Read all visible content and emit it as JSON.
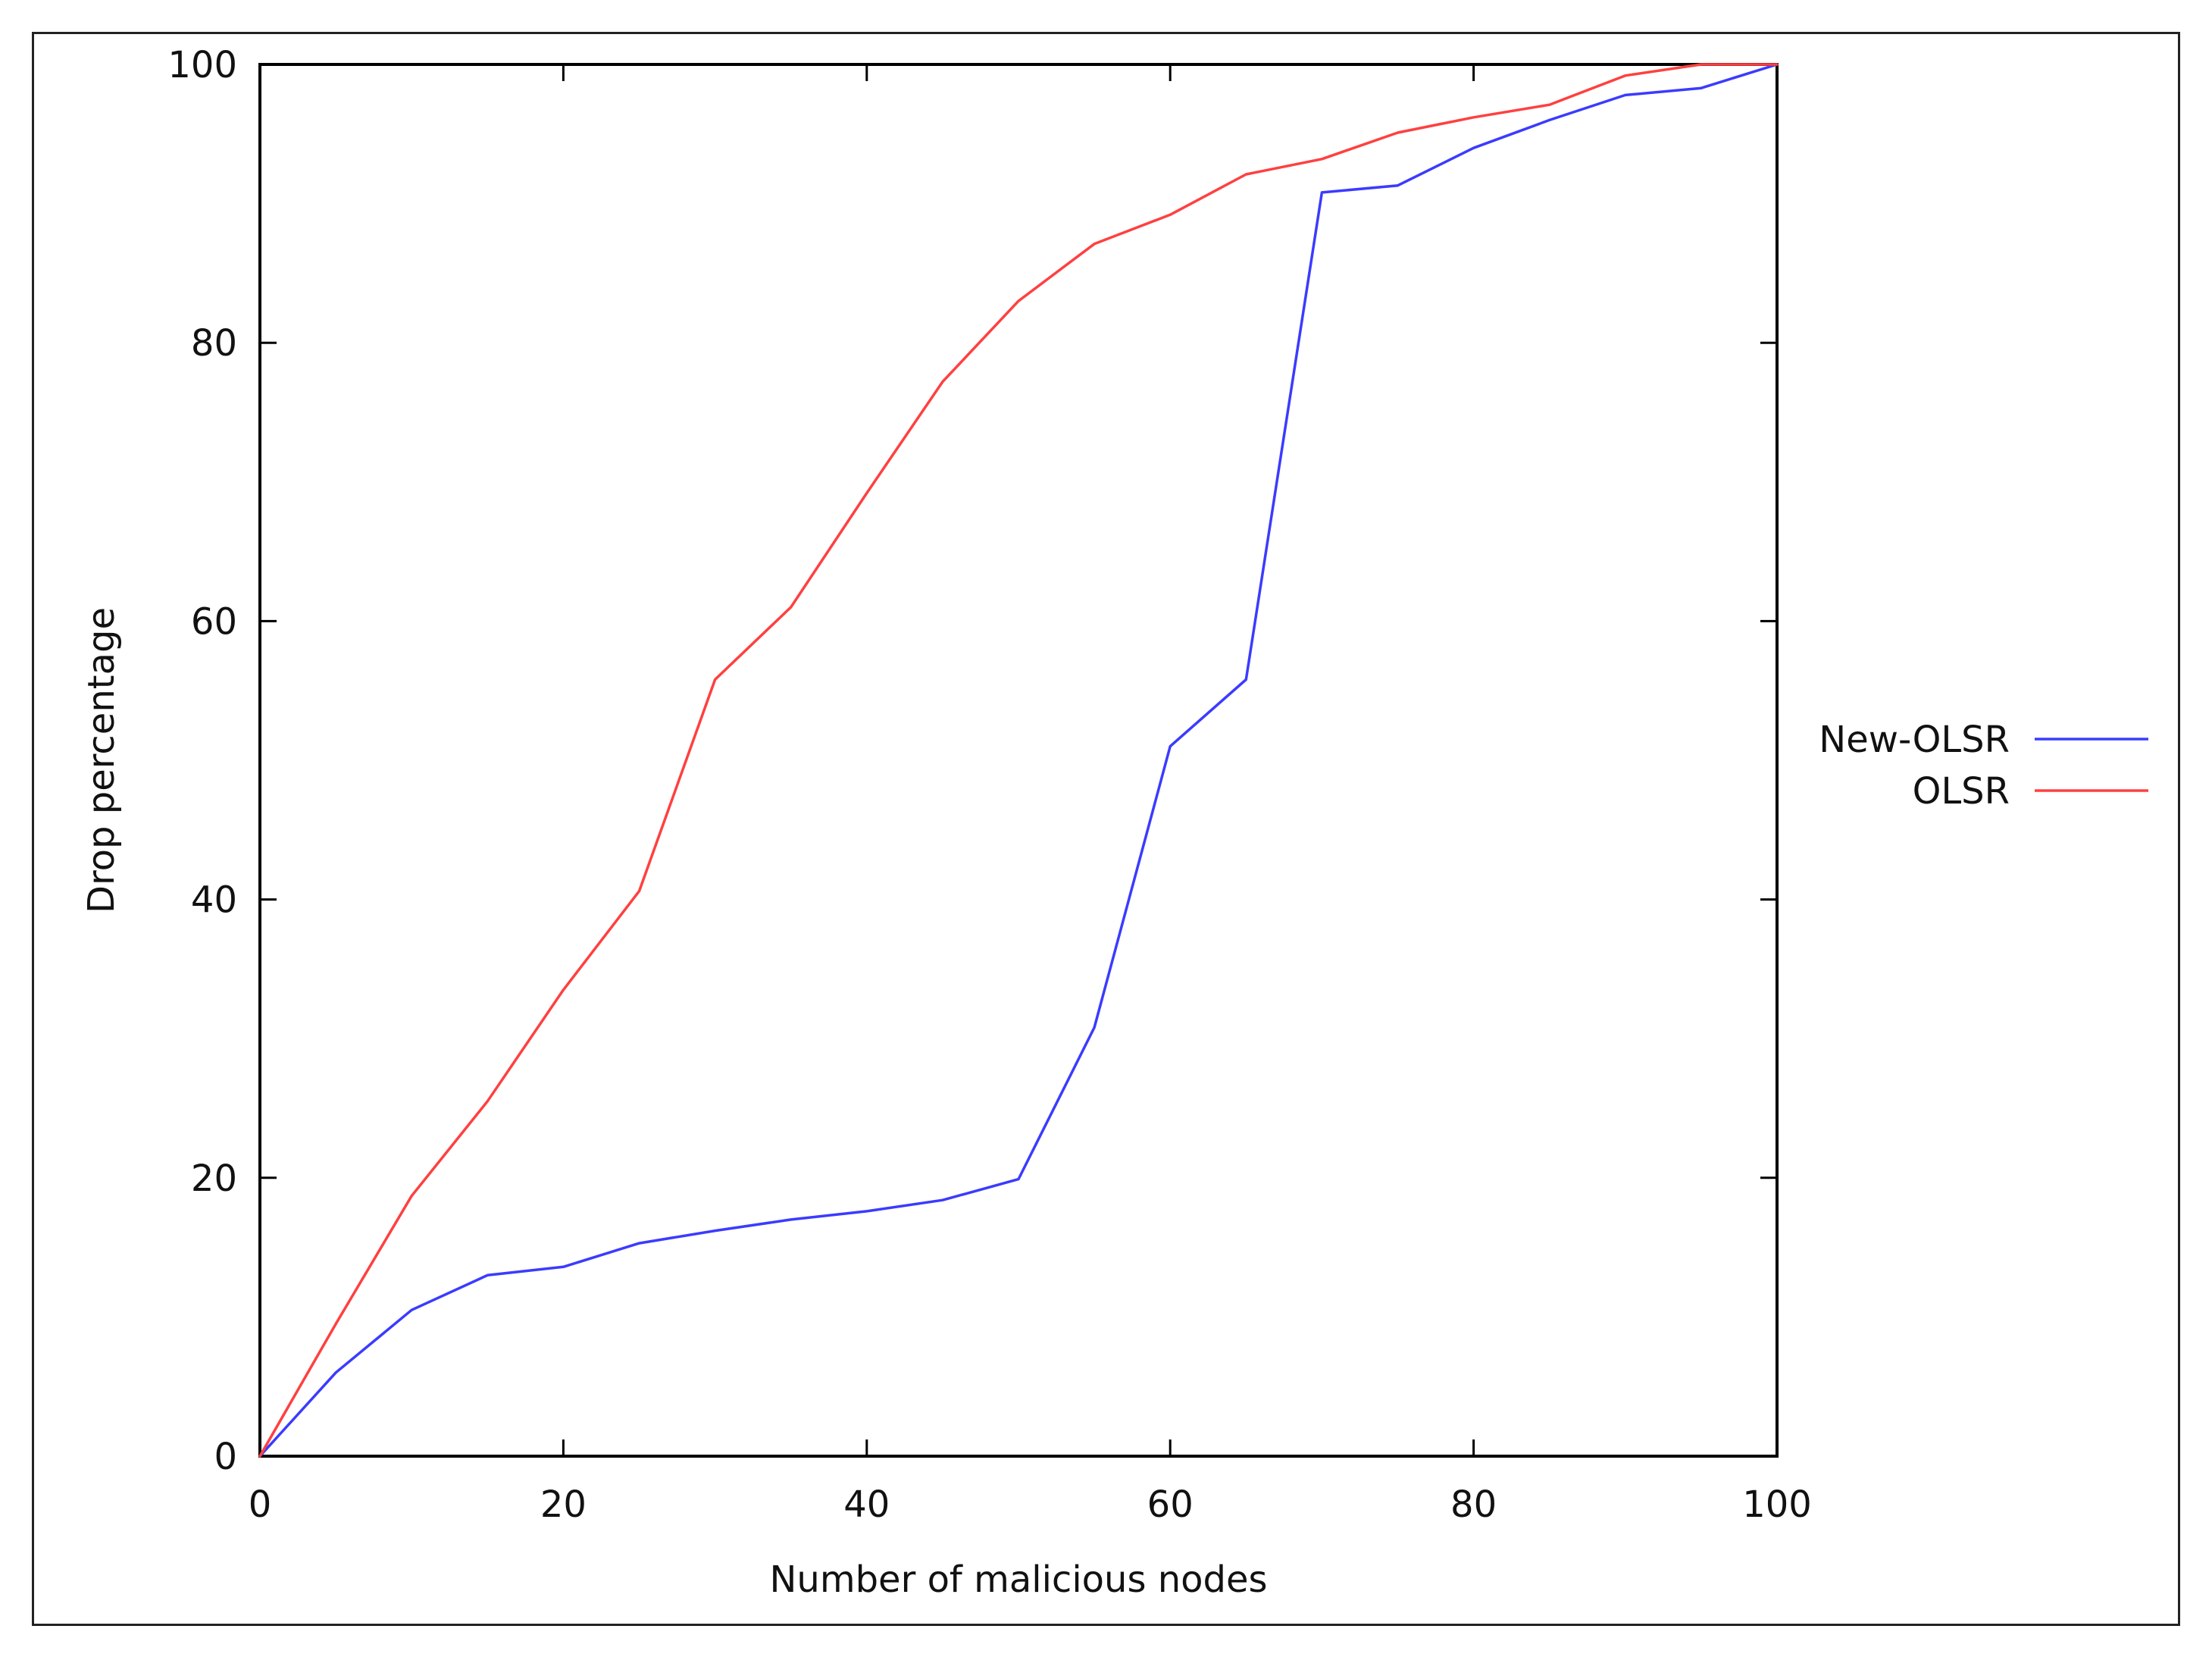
{
  "chart_data": {
    "type": "line",
    "title": "",
    "xlabel": "Number of malicious nodes",
    "ylabel": "Drop percentage",
    "xlim": [
      0,
      100
    ],
    "ylim": [
      0,
      100
    ],
    "xticks": [
      0,
      20,
      40,
      60,
      80,
      100
    ],
    "yticks": [
      0,
      20,
      40,
      60,
      80,
      100
    ],
    "grid": false,
    "legend_position": "right",
    "series": [
      {
        "name": "New-OLSR",
        "color": "#3b3bff",
        "x": [
          0,
          5,
          10,
          15,
          20,
          25,
          30,
          35,
          40,
          45,
          50,
          55,
          60,
          65,
          70,
          75,
          80,
          85,
          90,
          95,
          100
        ],
        "y": [
          0,
          6,
          10.5,
          13,
          13.6,
          15.3,
          16.2,
          17,
          17.6,
          18.4,
          19.9,
          30.8,
          51,
          55.8,
          90.8,
          91.3,
          94,
          96,
          97.8,
          98.3,
          100
        ]
      },
      {
        "name": "OLSR",
        "color": "#ff4040",
        "x": [
          0,
          5,
          10,
          15,
          20,
          25,
          30,
          35,
          40,
          45,
          50,
          55,
          60,
          65,
          70,
          75,
          80,
          85,
          90,
          95,
          100
        ],
        "y": [
          0,
          9.5,
          18.7,
          25.5,
          33.5,
          40.6,
          55.8,
          61,
          69.2,
          77.2,
          83,
          87.1,
          89.2,
          92.1,
          93.2,
          95.1,
          96.2,
          97.1,
          99.2,
          100,
          100
        ]
      }
    ]
  }
}
